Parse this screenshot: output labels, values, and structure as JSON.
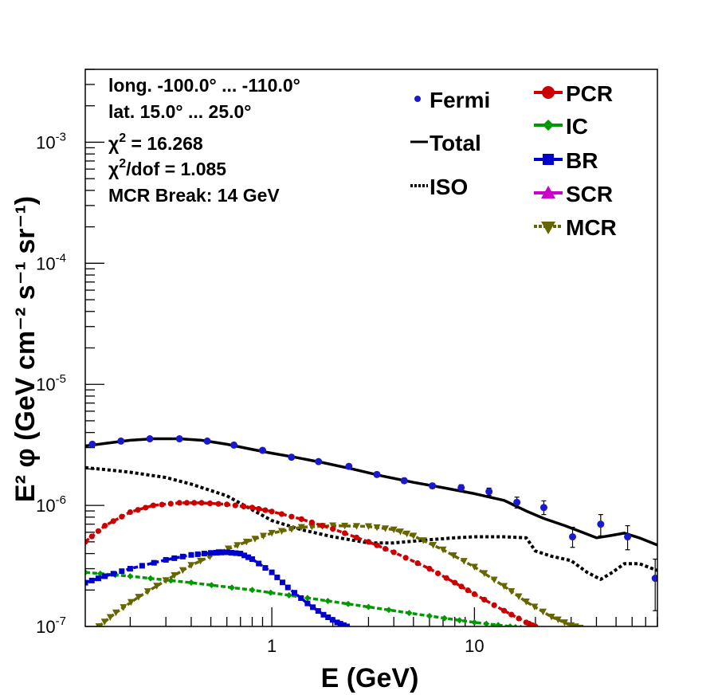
{
  "chart_data": {
    "type": "line",
    "xscale": "log",
    "yscale": "log",
    "xlim": [
      0.12,
      80
    ],
    "ylim": [
      1e-07,
      0.004
    ],
    "xlabel": "E (GeV)",
    "ylabel": "E² φ (GeV cm⁻² s⁻¹ sr⁻¹)",
    "x_ticks": [
      {
        "value": 1,
        "label": "1"
      },
      {
        "value": 10,
        "label": "10"
      }
    ],
    "y_ticks": [
      {
        "value": 1e-07,
        "mant": "10",
        "exp": "-7"
      },
      {
        "value": 1e-06,
        "mant": "10",
        "exp": "-6"
      },
      {
        "value": 1e-05,
        "mant": "10",
        "exp": "-5"
      },
      {
        "value": 0.0001,
        "mant": "10",
        "exp": "-4"
      },
      {
        "value": 0.001,
        "mant": "10",
        "exp": "-3"
      }
    ],
    "stats": {
      "line1": "long. -100.0° ... -110.0°",
      "line2": "lat. 15.0° ... 25.0°",
      "chi2_sym": "χ",
      "chi2_sup": "2",
      "chi2_val": " = 16.268",
      "chidof_sym": "χ",
      "chidof_sup": "2",
      "chidof_val": "/dof = 1.085",
      "line5": "MCR Break: 14 GeV"
    },
    "legend_left": [
      {
        "name": "Fermi",
        "style": "point",
        "color": "#1a1acc"
      },
      {
        "name": "Total",
        "style": "solid",
        "color": "#000000"
      },
      {
        "name": "ISO",
        "style": "dotted",
        "color": "#000000"
      }
    ],
    "legend_right": [
      {
        "name": "PCR",
        "marker": "circle",
        "color": "#cc0000"
      },
      {
        "name": "IC",
        "marker": "diamond",
        "color": "#009900"
      },
      {
        "name": "BR",
        "marker": "square",
        "color": "#0000cc"
      },
      {
        "name": "SCR",
        "marker": "triangle-up",
        "color": "#cc00cc"
      },
      {
        "name": "MCR",
        "marker": "triangle-down",
        "color": "#666600"
      }
    ],
    "fermi": {
      "name": "Fermi",
      "color": "#1a1acc",
      "x": [
        0.13,
        0.18,
        0.25,
        0.35,
        0.48,
        0.65,
        0.9,
        1.25,
        1.7,
        2.4,
        3.3,
        4.5,
        6.2,
        8.6,
        11.8,
        16.2,
        22.0,
        30.5,
        42.0,
        57.0,
        78.0
      ],
      "y": [
        3.2e-06,
        3.4e-06,
        3.55e-06,
        3.55e-06,
        3.4e-06,
        3.15e-06,
        2.85e-06,
        2.5e-06,
        2.3e-06,
        2.1e-06,
        1.8e-06,
        1.6e-06,
        1.45e-06,
        1.4e-06,
        1.3e-06,
        1.06e-06,
        9.6e-07,
        5.5e-07,
        7e-07,
        5.5e-07,
        2.5e-07
      ],
      "err_lo": [
        3.1e-06,
        3.3e-06,
        3.45e-06,
        3.45e-06,
        3.3e-06,
        3.05e-06,
        2.75e-06,
        2.42e-06,
        2.22e-06,
        2.02e-06,
        1.72e-06,
        1.53e-06,
        1.38e-06,
        1.32e-06,
        1.21e-06,
        9.5e-07,
        8.4e-07,
        4.5e-07,
        5.6e-07,
        4.3e-07,
        1.35e-07
      ],
      "err_hi": [
        3.3e-06,
        3.5e-06,
        3.65e-06,
        3.65e-06,
        3.5e-06,
        3.25e-06,
        2.95e-06,
        2.58e-06,
        2.38e-06,
        2.18e-06,
        1.88e-06,
        1.67e-06,
        1.52e-06,
        1.48e-06,
        1.39e-06,
        1.17e-06,
        1.09e-06,
        6.6e-07,
        8.4e-07,
        6.8e-07,
        3.6e-07
      ]
    },
    "curves": [
      {
        "name": "Total",
        "color": "#000000",
        "style": "solid",
        "width": 3.5,
        "x": [
          0.12,
          0.15,
          0.2,
          0.26,
          0.35,
          0.45,
          0.6,
          0.8,
          1.0,
          1.3,
          1.8,
          2.5,
          3.5,
          5,
          7,
          10,
          14,
          18,
          22,
          28,
          34,
          40,
          46,
          55,
          65,
          80
        ],
        "y": [
          3.1e-06,
          3.25e-06,
          3.45e-06,
          3.55e-06,
          3.55e-06,
          3.45e-06,
          3.2e-06,
          2.9e-06,
          2.7e-06,
          2.5e-06,
          2.25e-06,
          2e-06,
          1.75e-06,
          1.55e-06,
          1.4e-06,
          1.25e-06,
          1.1e-06,
          9e-07,
          7.8e-07,
          6.8e-07,
          6e-07,
          5.4e-07,
          5.6e-07,
          5.9e-07,
          5.4e-07,
          4.7e-07
        ]
      },
      {
        "name": "ISO",
        "color": "#000000",
        "style": "dotted",
        "width": 4,
        "x": [
          0.12,
          0.15,
          0.2,
          0.3,
          0.4,
          0.6,
          0.8,
          1.0,
          1.4,
          2.0,
          3.0,
          4.0,
          6.0,
          8.0,
          10,
          14,
          18,
          20,
          24,
          30,
          36,
          42,
          48,
          55,
          65,
          80
        ],
        "y": [
          2.05e-06,
          1.98e-06,
          1.88e-06,
          1.7e-06,
          1.5e-06,
          1.2e-06,
          9.2e-07,
          7.5e-07,
          6.3e-07,
          5.5e-07,
          4.9e-07,
          4.9e-07,
          5.2e-07,
          5.4e-07,
          5.5e-07,
          5.5e-07,
          5.4e-07,
          4.2e-07,
          3.8e-07,
          3.5e-07,
          2.8e-07,
          2.45e-07,
          2.8e-07,
          3.3e-07,
          3.3e-07,
          2.9e-07
        ]
      },
      {
        "name": "PCR",
        "color": "#cc0000",
        "style": "dash",
        "width": 3.5,
        "marker": "circle",
        "x": [
          0.12,
          0.15,
          0.2,
          0.26,
          0.35,
          0.45,
          0.6,
          0.8,
          1.0,
          1.4,
          2.0,
          3.0,
          4.0,
          6.0,
          8.0,
          10,
          14,
          18,
          20
        ],
        "y": [
          5e-07,
          6.8e-07,
          8.8e-07,
          1e-06,
          1.05e-06,
          1.05e-06,
          1.02e-06,
          9.6e-07,
          8.9e-07,
          7.7e-07,
          6.4e-07,
          5e-07,
          4.1e-07,
          3e-07,
          2.3e-07,
          1.85e-07,
          1.35e-07,
          1.08e-07,
          1e-07
        ]
      },
      {
        "name": "BR",
        "color": "#0000cc",
        "style": "dash",
        "width": 3.5,
        "marker": "square",
        "x": [
          0.12,
          0.15,
          0.2,
          0.3,
          0.4,
          0.5,
          0.6,
          0.7,
          0.8,
          1.0,
          1.2,
          1.5,
          1.8,
          2.1,
          2.35
        ],
        "y": [
          2.3e-07,
          2.6e-07,
          3e-07,
          3.55e-07,
          3.9e-07,
          4.05e-07,
          4.1e-07,
          4e-07,
          3.6e-07,
          2.8e-07,
          2.1e-07,
          1.55e-07,
          1.25e-07,
          1.08e-07,
          1e-07
        ]
      },
      {
        "name": "IC",
        "color": "#009900",
        "style": "dash",
        "width": 3.5,
        "marker": "diamond",
        "x": [
          0.12,
          0.2,
          0.4,
          0.8,
          1.5,
          3.0,
          6.0,
          10.0,
          15.0,
          18.0
        ],
        "y": [
          2.8e-07,
          2.6e-07,
          2.3e-07,
          2e-07,
          1.72e-07,
          1.45e-07,
          1.22e-07,
          1.08e-07,
          1e-07,
          9.6e-08
        ]
      },
      {
        "name": "MCR",
        "color": "#666600",
        "style": "dash",
        "width": 3.5,
        "marker": "triangle-down",
        "x": [
          0.14,
          0.17,
          0.22,
          0.3,
          0.4,
          0.55,
          0.75,
          1.0,
          1.4,
          2.0,
          3.0,
          4.0,
          5.0,
          7.0,
          10.0,
          14.0,
          18.0,
          24.0,
          30.0,
          35.0
        ],
        "y": [
          1e-07,
          1.3e-07,
          1.75e-07,
          2.4e-07,
          3.2e-07,
          4.1e-07,
          5e-07,
          5.9e-07,
          6.6e-07,
          6.8e-07,
          6.7e-07,
          6.3e-07,
          5.6e-07,
          4.3e-07,
          3.1e-07,
          2.15e-07,
          1.6e-07,
          1.2e-07,
          1.02e-07,
          9.5e-08
        ]
      }
    ]
  }
}
